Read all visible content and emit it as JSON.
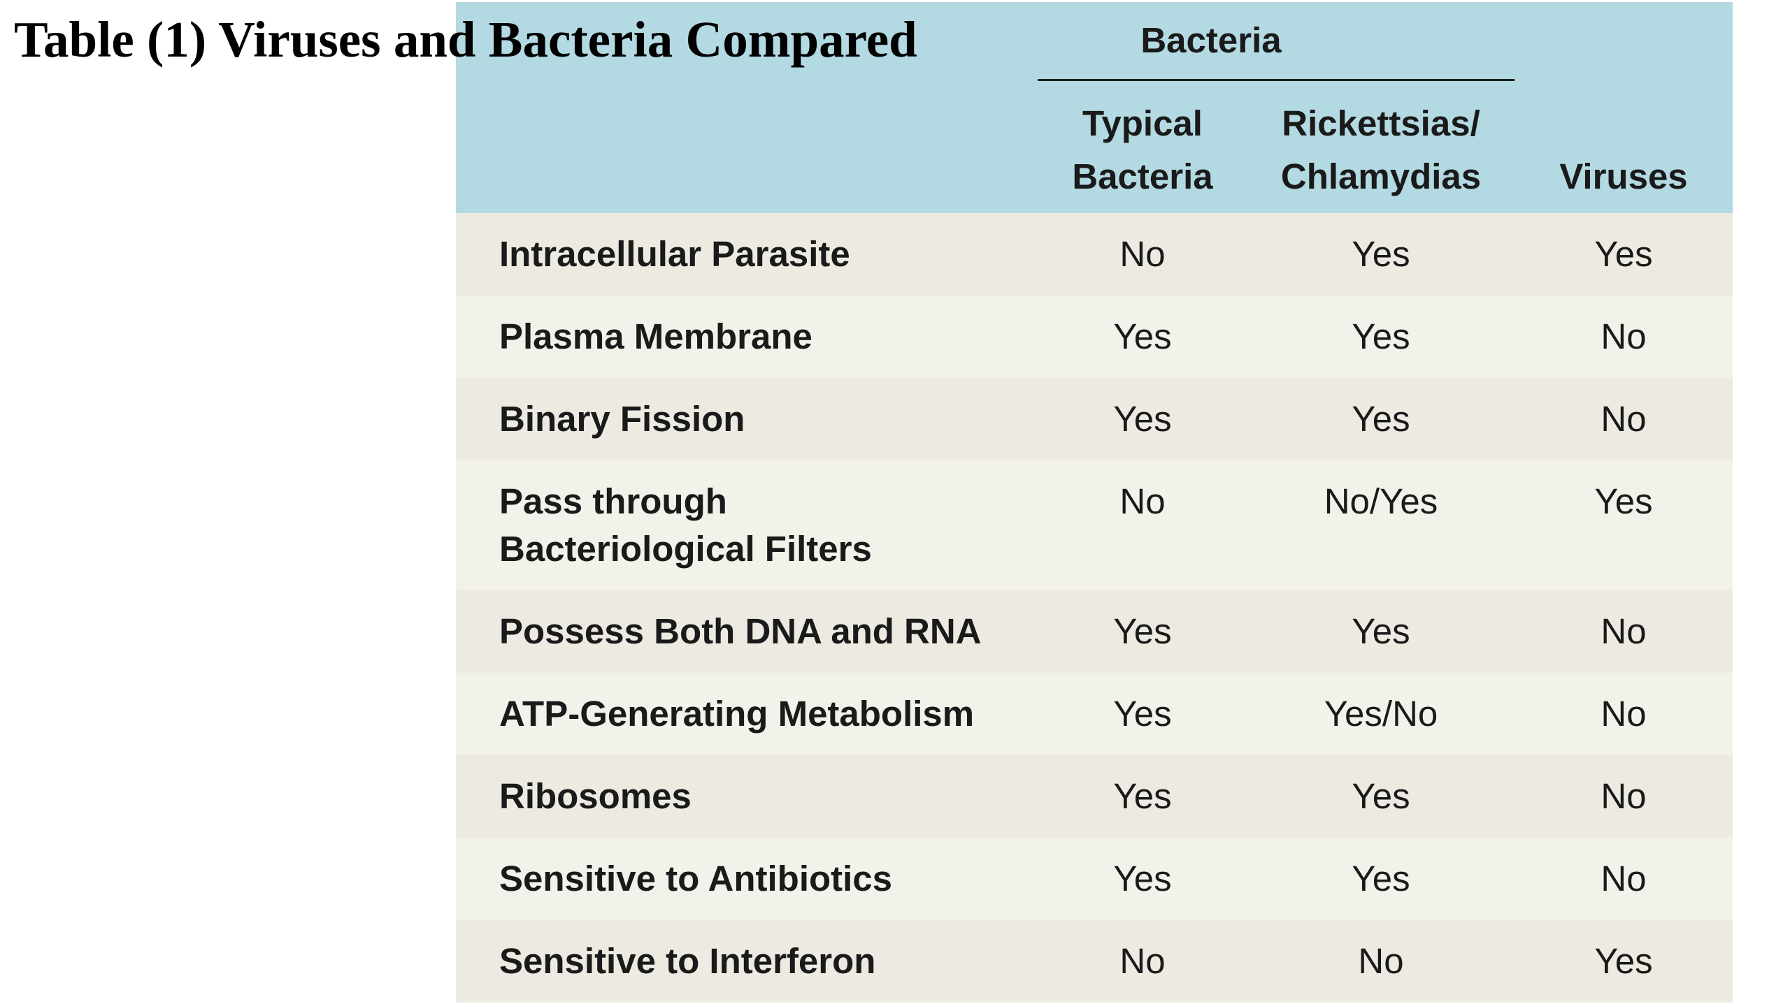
{
  "title": "Table (1) Viruses and Bacteria Compared",
  "table": {
    "group_header": "Bacteria",
    "columns": {
      "typical": [
        "Typical",
        "Bacteria"
      ],
      "rickettsias": [
        "Rickettsias/",
        "Chlamydias"
      ],
      "viruses": "Viruses"
    },
    "colors": {
      "header_bg": "#b3d9e2",
      "row_bg": "#edeae2",
      "row_alt_bg": "#f2f1ea",
      "text": "#1a1a1a"
    },
    "rows": [
      {
        "label": [
          "Intracellular Parasite"
        ],
        "typical": "No",
        "rickettsias": "Yes",
        "viruses": "Yes"
      },
      {
        "label": [
          "Plasma Membrane"
        ],
        "typical": "Yes",
        "rickettsias": "Yes",
        "viruses": "No"
      },
      {
        "label": [
          "Binary Fission"
        ],
        "typical": "Yes",
        "rickettsias": "Yes",
        "viruses": "No"
      },
      {
        "label": [
          "Pass through",
          "Bacteriological Filters"
        ],
        "typical": "No",
        "rickettsias": "No/Yes",
        "viruses": "Yes"
      },
      {
        "label": [
          "Possess Both DNA and RNA"
        ],
        "typical": "Yes",
        "rickettsias": "Yes",
        "viruses": "No"
      },
      {
        "label": [
          "ATP-Generating Metabolism"
        ],
        "typical": "Yes",
        "rickettsias": "Yes/No",
        "viruses": "No"
      },
      {
        "label": [
          "Ribosomes"
        ],
        "typical": "Yes",
        "rickettsias": "Yes",
        "viruses": "No"
      },
      {
        "label": [
          "Sensitive to Antibiotics"
        ],
        "typical": "Yes",
        "rickettsias": "Yes",
        "viruses": "No"
      },
      {
        "label": [
          "Sensitive to Interferon"
        ],
        "typical": "No",
        "rickettsias": "No",
        "viruses": "Yes"
      }
    ]
  }
}
